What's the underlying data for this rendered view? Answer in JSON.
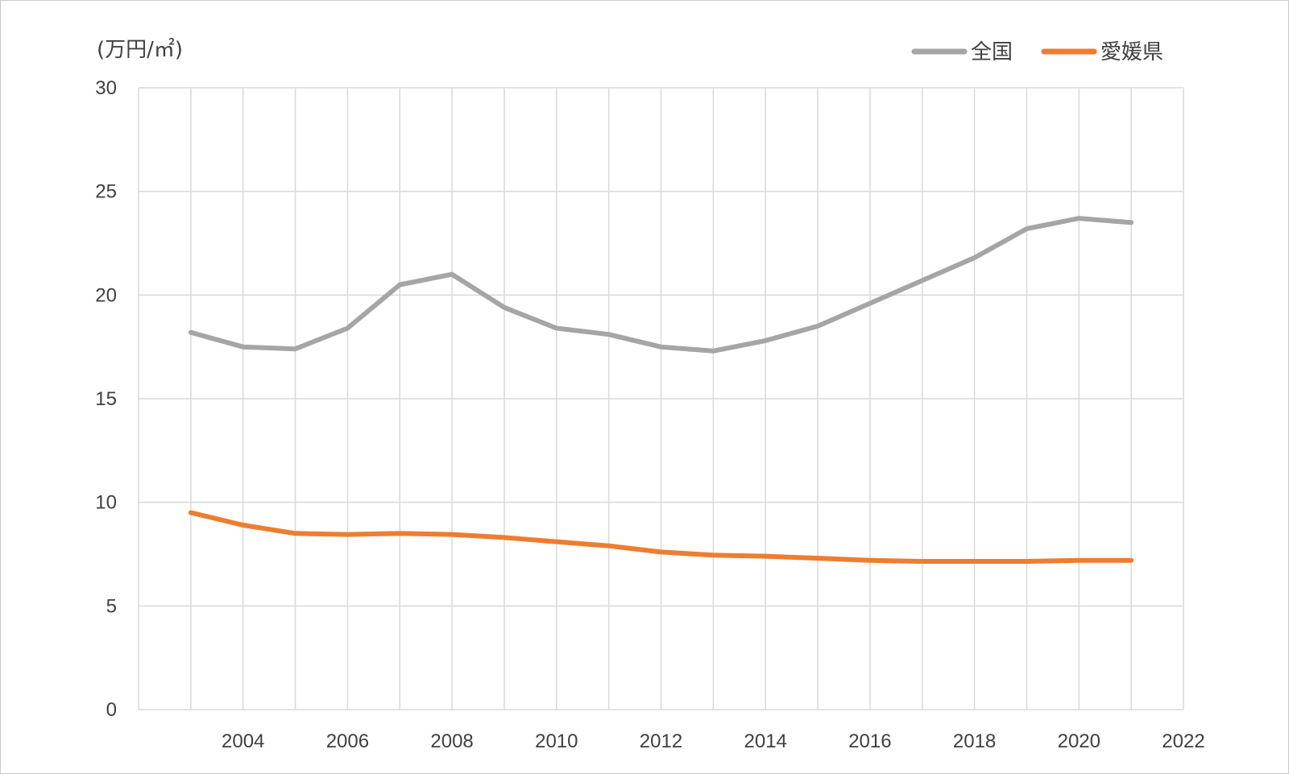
{
  "chart_data": {
    "type": "line",
    "ylabel": "(万円/㎡)",
    "xlim": [
      2002,
      2022
    ],
    "ylim": [
      0,
      30
    ],
    "x_ticks": [
      "2004",
      "2006",
      "2008",
      "2010",
      "2012",
      "2014",
      "2016",
      "2018",
      "2020",
      "2022"
    ],
    "y_ticks": [
      "0",
      "5",
      "10",
      "15",
      "20",
      "25",
      "30"
    ],
    "grid": true,
    "legend_position": "top-right",
    "x": [
      2003,
      2004,
      2005,
      2006,
      2007,
      2008,
      2009,
      2010,
      2011,
      2012,
      2013,
      2014,
      2015,
      2016,
      2017,
      2018,
      2019,
      2020,
      2021
    ],
    "series": [
      {
        "name": "全国",
        "color": "#a5a5a5",
        "values": [
          18.2,
          17.5,
          17.4,
          18.4,
          20.5,
          21.0,
          19.4,
          18.4,
          18.1,
          17.5,
          17.3,
          17.8,
          18.5,
          19.6,
          20.7,
          21.8,
          23.2,
          23.7,
          23.5
        ]
      },
      {
        "name": "愛媛県",
        "color": "#ed7d31",
        "values": [
          9.5,
          8.9,
          8.5,
          8.45,
          8.5,
          8.45,
          8.3,
          8.1,
          7.9,
          7.6,
          7.45,
          7.4,
          7.3,
          7.2,
          7.15,
          7.15,
          7.15,
          7.2,
          7.2
        ]
      }
    ]
  }
}
